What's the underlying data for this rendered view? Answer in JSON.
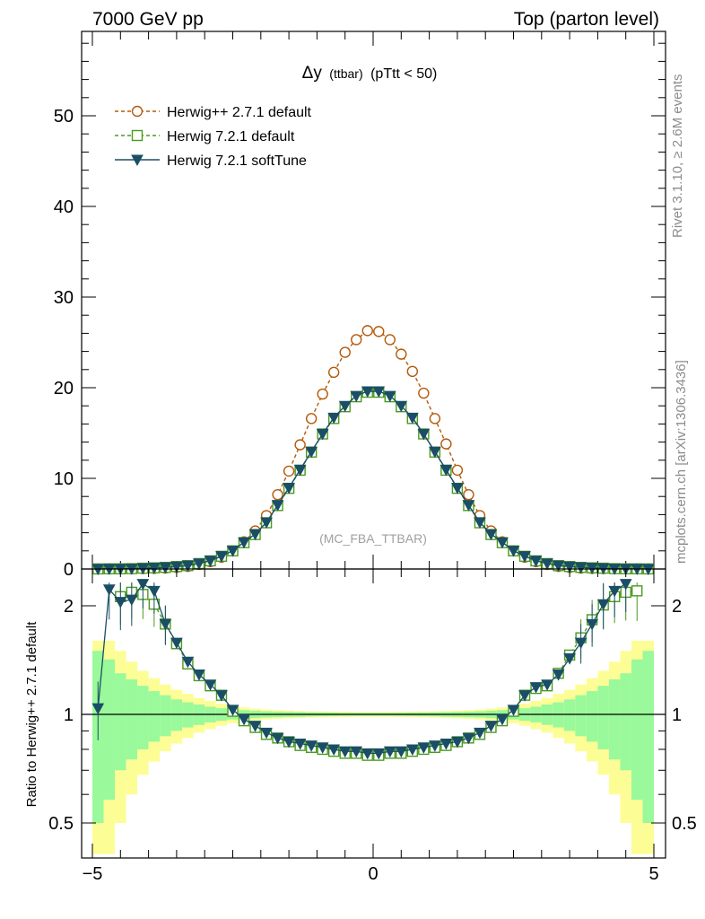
{
  "header": {
    "left": "7000 GeV pp",
    "right": "Top (parton level)"
  },
  "title": {
    "symbol": "Δy",
    "small": "(ttbar)",
    "rest": "(pTtt < 50)"
  },
  "watermark": "(MC_FBA_TTBAR)",
  "side_text": {
    "rivet": "Rivet 3.1.10, ≥ 2.6M events",
    "mcplots": "mcplots.cern.ch [arXiv:1306.3436]"
  },
  "legend": [
    {
      "label": "Herwig++ 2.7.1 default",
      "color": "#b45a0a",
      "marker": "open-circle",
      "dash": true
    },
    {
      "label": "Herwig 7.2.1 default",
      "color": "#4a9a1e",
      "marker": "open-square",
      "dash": true
    },
    {
      "label": "Herwig 7.2.1 softTune",
      "color": "#1a4e66",
      "marker": "filled-triangle-down",
      "dash": false
    }
  ],
  "ratio_ylabel": "Ratio to Herwig++ 2.7.1 default",
  "chart_data": [
    {
      "type": "line",
      "panel": "main",
      "xlim": [
        -5,
        5
      ],
      "ylim": [
        0,
        58
      ],
      "yticks": [
        0,
        10,
        20,
        30,
        40,
        50
      ],
      "xtick_labels": [
        "−5",
        "0",
        "5"
      ],
      "x": [
        -4.9,
        -4.7,
        -4.5,
        -4.3,
        -4.1,
        -3.9,
        -3.7,
        -3.5,
        -3.3,
        -3.1,
        -2.9,
        -2.7,
        -2.5,
        -2.3,
        -2.1,
        -1.9,
        -1.7,
        -1.5,
        -1.3,
        -1.1,
        -0.9,
        -0.7,
        -0.5,
        -0.3,
        -0.1,
        0.1,
        0.3,
        0.5,
        0.7,
        0.9,
        1.1,
        1.3,
        1.5,
        1.7,
        1.9,
        2.1,
        2.3,
        2.5,
        2.7,
        2.9,
        3.1,
        3.3,
        3.5,
        3.7,
        3.9,
        4.1,
        4.3,
        4.5,
        4.7,
        4.9
      ],
      "series": [
        {
          "name": "Herwig++ 2.7.1 default",
          "values": [
            0.01,
            0.01,
            0.01,
            0.02,
            0.04,
            0.06,
            0.1,
            0.17,
            0.28,
            0.5,
            0.8,
            1.3,
            2.0,
            3.0,
            4.2,
            5.9,
            8.2,
            10.8,
            13.7,
            16.6,
            19.3,
            21.7,
            23.9,
            25.3,
            26.3,
            26.2,
            25.3,
            23.7,
            21.8,
            19.4,
            16.6,
            13.8,
            10.9,
            8.2,
            5.9,
            4.2,
            3.0,
            2.0,
            1.3,
            0.8,
            0.5,
            0.28,
            0.17,
            0.1,
            0.06,
            0.04,
            0.02,
            0.01,
            0.01,
            0.01
          ]
        },
        {
          "name": "Herwig 7.2.1 default",
          "values": [
            0.01,
            0.02,
            0.02,
            0.04,
            0.09,
            0.13,
            0.18,
            0.27,
            0.37,
            0.6,
            0.9,
            1.4,
            2.0,
            2.9,
            3.8,
            5.1,
            7.0,
            8.9,
            10.9,
            12.9,
            14.9,
            16.6,
            17.9,
            19.0,
            19.5,
            19.5,
            19.0,
            17.9,
            16.6,
            14.9,
            12.9,
            10.9,
            8.9,
            7.0,
            5.1,
            3.8,
            2.9,
            2.0,
            1.4,
            0.9,
            0.6,
            0.37,
            0.27,
            0.18,
            0.13,
            0.09,
            0.04,
            0.02,
            0.02,
            0.01
          ]
        },
        {
          "name": "Herwig 7.2.1 softTune",
          "values": [
            0.01,
            0.02,
            0.02,
            0.04,
            0.09,
            0.13,
            0.18,
            0.27,
            0.38,
            0.61,
            0.92,
            1.42,
            2.02,
            2.95,
            3.85,
            5.15,
            7.05,
            8.95,
            10.95,
            12.95,
            14.9,
            16.7,
            18.0,
            19.1,
            19.6,
            19.6,
            19.1,
            18.0,
            16.7,
            14.9,
            12.95,
            10.95,
            8.95,
            7.05,
            5.15,
            3.85,
            2.95,
            2.02,
            1.42,
            0.92,
            0.61,
            0.38,
            0.27,
            0.18,
            0.13,
            0.09,
            0.04,
            0.02,
            0.02,
            0.01
          ]
        }
      ]
    },
    {
      "type": "line",
      "panel": "ratio",
      "xlim": [
        -5,
        5
      ],
      "ylim": [
        0.41,
        2.32
      ],
      "ylog": true,
      "yticks": [
        0.5,
        1,
        2
      ],
      "ytick_labels": [
        "0.5",
        "1",
        "2"
      ],
      "x": [
        -4.9,
        -4.7,
        -4.5,
        -4.3,
        -4.1,
        -3.9,
        -3.7,
        -3.5,
        -3.3,
        -3.1,
        -2.9,
        -2.7,
        -2.5,
        -2.3,
        -2.1,
        -1.9,
        -1.7,
        -1.5,
        -1.3,
        -1.1,
        -0.9,
        -0.7,
        -0.5,
        -0.3,
        -0.1,
        0.1,
        0.3,
        0.5,
        0.7,
        0.9,
        1.1,
        1.3,
        1.5,
        1.7,
        1.9,
        2.1,
        2.3,
        2.5,
        2.7,
        2.9,
        3.1,
        3.3,
        3.5,
        3.7,
        3.9,
        4.1,
        4.3,
        4.5,
        4.7,
        4.9
      ],
      "series": [
        {
          "name": "Herwig 7.2.1 default",
          "values": [
            null,
            null,
            2.12,
            2.18,
            2.15,
            2.02,
            1.78,
            1.57,
            1.38,
            1.28,
            1.2,
            1.13,
            1.02,
            0.96,
            0.92,
            0.88,
            0.86,
            0.84,
            0.82,
            0.81,
            0.8,
            0.79,
            0.78,
            0.78,
            0.77,
            0.77,
            0.78,
            0.78,
            0.79,
            0.8,
            0.81,
            0.82,
            0.84,
            0.86,
            0.88,
            0.92,
            0.96,
            1.02,
            1.13,
            1.18,
            1.2,
            1.3,
            1.46,
            1.63,
            1.83,
            2.01,
            2.12,
            2.18,
            2.2,
            null
          ]
        },
        {
          "name": "Herwig 7.2.1 softTune",
          "values": [
            1.04,
            2.22,
            2.05,
            2.08,
            2.3,
            2.2,
            1.78,
            1.58,
            1.4,
            1.29,
            1.21,
            1.13,
            1.03,
            0.97,
            0.93,
            0.89,
            0.86,
            0.84,
            0.83,
            0.82,
            0.81,
            0.8,
            0.79,
            0.79,
            0.78,
            0.78,
            0.79,
            0.79,
            0.8,
            0.81,
            0.82,
            0.83,
            0.84,
            0.86,
            0.89,
            0.93,
            0.97,
            1.03,
            1.13,
            1.19,
            1.21,
            1.29,
            1.43,
            1.58,
            1.78,
            2.02,
            2.2,
            2.3,
            null,
            null
          ]
        }
      ],
      "band_green": [
        0.5,
        0.42,
        0.3,
        0.25,
        0.2,
        0.16,
        0.13,
        0.1,
        0.08,
        0.065,
        0.05,
        0.04,
        0.032,
        0.028,
        0.024,
        0.02,
        0.018,
        0.016,
        0.015,
        0.013,
        0.012,
        0.011,
        0.01,
        0.01,
        0.01,
        0.01,
        0.01,
        0.01,
        0.011,
        0.012,
        0.013,
        0.015,
        0.016,
        0.018,
        0.02,
        0.024,
        0.028,
        0.032,
        0.04,
        0.05,
        0.065,
        0.08,
        0.1,
        0.13,
        0.16,
        0.2,
        0.25,
        0.3,
        0.42,
        0.5
      ],
      "band_yellow": [
        0.6,
        0.6,
        0.5,
        0.4,
        0.32,
        0.26,
        0.21,
        0.17,
        0.14,
        0.11,
        0.09,
        0.07,
        0.055,
        0.045,
        0.038,
        0.032,
        0.028,
        0.025,
        0.022,
        0.02,
        0.019,
        0.018,
        0.017,
        0.016,
        0.016,
        0.016,
        0.016,
        0.017,
        0.018,
        0.019,
        0.02,
        0.022,
        0.025,
        0.028,
        0.032,
        0.038,
        0.045,
        0.055,
        0.07,
        0.09,
        0.11,
        0.14,
        0.17,
        0.21,
        0.26,
        0.32,
        0.4,
        0.5,
        0.6,
        0.6
      ]
    }
  ]
}
